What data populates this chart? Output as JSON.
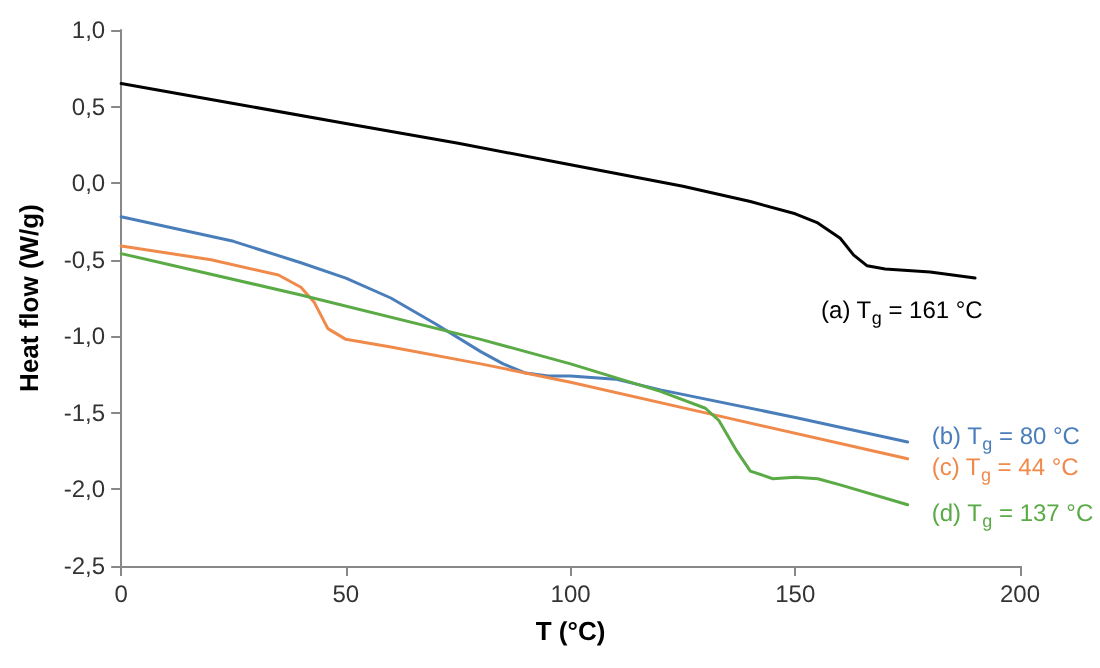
{
  "chart_data": {
    "type": "line",
    "xlabel": "T (°C)",
    "ylabel": "Heat flow (W/g)",
    "xlim": [
      0,
      200
    ],
    "xticks": [
      0,
      50,
      100,
      150,
      200
    ],
    "ylim": [
      -2.5,
      1
    ],
    "yticks": [
      {
        "value": -2.5,
        "label": "-2,5"
      },
      {
        "value": -2,
        "label": "-2,0"
      },
      {
        "value": -1.5,
        "label": "-1,5"
      },
      {
        "value": -1,
        "label": "-1,0"
      },
      {
        "value": -0.5,
        "label": "-0,5"
      },
      {
        "value": 0,
        "label": "0,0"
      },
      {
        "value": 0.5,
        "label": "0,5"
      },
      {
        "value": 1,
        "label": "1,0"
      }
    ],
    "grid": false,
    "legend": false,
    "marker": "none",
    "line_style": "solid",
    "series": [
      {
        "name": "(a) T$_{g}$ = 161 °C",
        "color": "#000000",
        "x": [
          0,
          25,
          50,
          75,
          100,
          125,
          140,
          150,
          155,
          160,
          163,
          166,
          170,
          180,
          190
        ],
        "values": [
          0.65,
          0.52,
          0.39,
          0.26,
          0.12,
          -0.02,
          -0.12,
          -0.2,
          -0.26,
          -0.36,
          -0.47,
          -0.54,
          -0.56,
          -0.58,
          -0.62
        ]
      },
      {
        "name": "(b) T$_{g}$ = 80 °C",
        "color": "#4a7ebb",
        "x": [
          0,
          25,
          40,
          50,
          60,
          70,
          80,
          85,
          90,
          95,
          100,
          110,
          120,
          150,
          175
        ],
        "values": [
          -0.22,
          -0.38,
          -0.52,
          -0.62,
          -0.75,
          -0.92,
          -1.1,
          -1.18,
          -1.24,
          -1.26,
          -1.26,
          -1.28,
          -1.35,
          -1.53,
          -1.69
        ]
      },
      {
        "name": "(c) T$_{g}$ = 44 °C",
        "color": "#f08a4b",
        "x": [
          0,
          20,
          35,
          40,
          43,
          46,
          50,
          60,
          80,
          100,
          130,
          175
        ],
        "values": [
          -0.41,
          -0.5,
          -0.6,
          -0.68,
          -0.78,
          -0.95,
          -1.02,
          -1.07,
          -1.18,
          -1.3,
          -1.5,
          -1.8
        ]
      },
      {
        "name": "(d) T$_{g}$ = 137 °C",
        "color": "#5aaa46",
        "x": [
          0,
          40,
          80,
          100,
          120,
          130,
          133,
          137,
          140,
          145,
          150,
          155,
          160,
          175
        ],
        "values": [
          -0.46,
          -0.73,
          -1.02,
          -1.18,
          -1.36,
          -1.47,
          -1.55,
          -1.75,
          -1.88,
          -1.93,
          -1.92,
          -1.93,
          -1.97,
          -2.1
        ]
      }
    ]
  }
}
